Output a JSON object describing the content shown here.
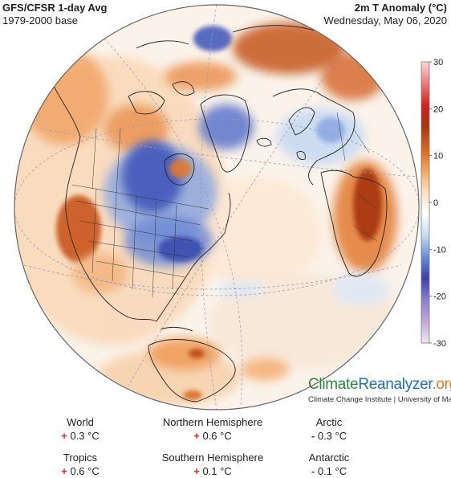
{
  "header": {
    "title": "GFS/CFSR 1-day Avg",
    "base": "1979-2000 base",
    "variable": "2m T Anomaly (°C)",
    "date": "Wednesday, May 06, 2020"
  },
  "colorbar": {
    "ticks": [
      "30",
      "20",
      "10",
      "0",
      "-10",
      "-20",
      "-30"
    ],
    "tick_values": [
      30,
      20,
      10,
      0,
      -10,
      -20,
      -30
    ],
    "range": [
      -30,
      30
    ],
    "colors": [
      "#efe7ef",
      "#c5a7d6",
      "#8a7fcf",
      "#3b3fae",
      "#6a8fd6",
      "#c8dcf0",
      "#ffffff",
      "#fbe0c2",
      "#f4a45a",
      "#d8641a",
      "#a8350e",
      "#d22020",
      "#f07a7a",
      "#fbd6d6"
    ]
  },
  "map": {
    "projection": "orthographic",
    "region": "North America, North Atlantic and Europe",
    "colors": {
      "ocean_neutral": "#fbf4ec",
      "warm": "#f2a96a",
      "hot": "#b54512",
      "cold": "#6f8fd8",
      "very_cold": "#3b4cb5"
    }
  },
  "brand": {
    "climate": "Climate",
    "reanalyzer": "Reanalyzer",
    "org": ".org",
    "subtitle": "Climate Change Institute | University of Maine"
  },
  "stats": {
    "world": {
      "name": "World",
      "sign": "+",
      "value": "0.3 °C"
    },
    "nh": {
      "name": "Northern Hemisphere",
      "sign": "+",
      "value": "0.6 °C"
    },
    "arctic": {
      "name": "Arctic",
      "sign": "-",
      "value": "0.3 °C"
    },
    "tropics": {
      "name": "Tropics",
      "sign": "+",
      "value": "0.6 °C"
    },
    "sh": {
      "name": "Southern Hemisphere",
      "sign": "+",
      "value": "0.1 °C"
    },
    "antarctic": {
      "name": "Antarctic",
      "sign": "-",
      "value": "0.1 °C"
    }
  }
}
